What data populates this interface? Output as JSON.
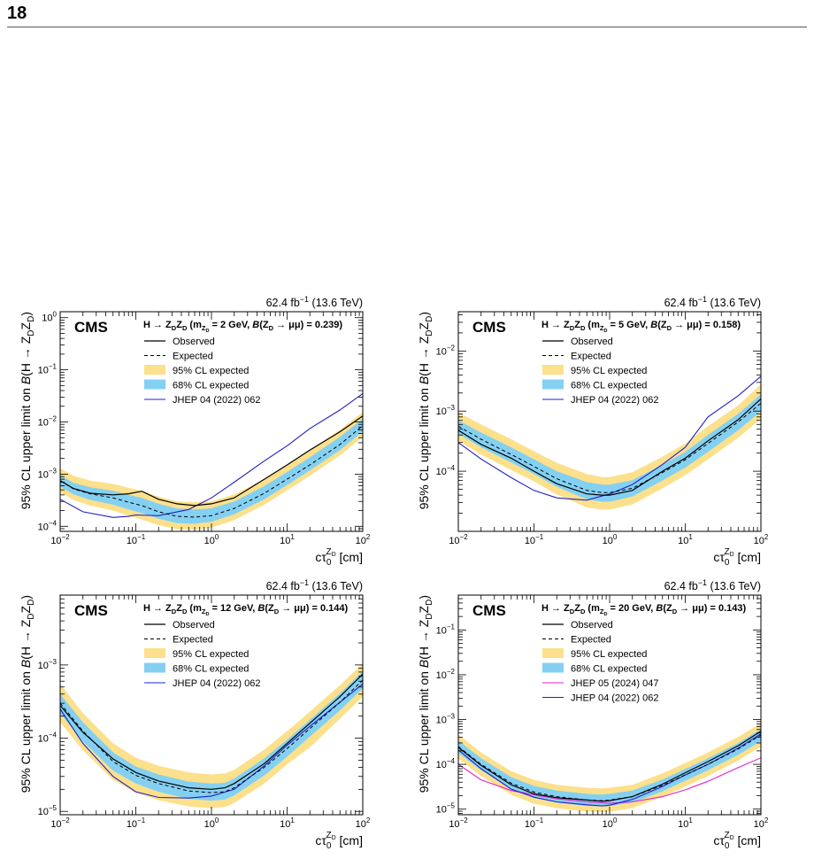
{
  "page": {
    "number": "18"
  },
  "colors": {
    "band95": "#fce08c",
    "band68": "#84d0f2",
    "observed": "#000000",
    "expected": "#000000",
    "jhep04": "#2020c8",
    "jhep05": "#e020d0"
  },
  "common": {
    "lumi": "62.4 fb",
    "lumi_sup": "−1",
    "energy": "(13.6 TeV)",
    "experiment": "CMS",
    "ylabel_pre": "95% CL upper limit on",
    "ylabel_B": "B",
    "ylabel_post": "(H → Z",
    "xlabel_c": "cτ",
    "xlabel_sup": "Z",
    "xlabel_supsub": "D",
    "xlabel_sub": "0",
    "xlabel_unit": "[cm]",
    "legend": {
      "observed": "Observed",
      "expected": "Expected",
      "band95": "95% CL expected",
      "band68": "68% CL expected",
      "jhep04": "JHEP 04 (2022) 062",
      "jhep05": "JHEP 05 (2024) 047"
    }
  },
  "chart_data": [
    {
      "type": "line",
      "title_main": "H → Z",
      "mass": "2 GeV",
      "br": "0.239",
      "xscale": "log",
      "yscale": "log",
      "xlim": [
        0.01,
        100
      ],
      "ylim": [
        8e-05,
        1.3
      ],
      "xticks": [
        0.01,
        0.1,
        1,
        10,
        100
      ],
      "yticks": [
        0.0001,
        0.001,
        0.01,
        0.1,
        1
      ],
      "legend_placement": "top",
      "x": [
        0.01,
        0.015,
        0.025,
        0.05,
        0.08,
        0.12,
        0.2,
        0.35,
        0.6,
        1,
        2,
        5,
        10,
        20,
        50,
        100
      ],
      "observed": [
        0.00075,
        0.00053,
        0.00043,
        0.0004,
        0.00042,
        0.00047,
        0.00033,
        0.00027,
        0.00025,
        0.00027,
        0.00035,
        0.0008,
        0.0015,
        0.0029,
        0.0065,
        0.013
      ],
      "expected": [
        0.00075,
        0.00052,
        0.00042,
        0.00035,
        0.00029,
        0.00025,
        0.00019,
        0.000155,
        0.00015,
        0.00016,
        0.00022,
        0.00043,
        0.0008,
        0.0015,
        0.0037,
        0.0085
      ],
      "band68_low": [
        0.00058,
        0.00041,
        0.00032,
        0.00026,
        0.00021,
        0.00018,
        0.00014,
        0.000115,
        0.000112,
        0.000122,
        0.00017,
        0.00033,
        0.00062,
        0.00118,
        0.0029,
        0.0066
      ],
      "band68_high": [
        0.00095,
        0.00068,
        0.00056,
        0.00048,
        0.0004,
        0.00035,
        0.00027,
        0.00022,
        0.00021,
        0.00022,
        0.0003,
        0.00059,
        0.0011,
        0.0021,
        0.0052,
        0.0115
      ],
      "band95_low": [
        0.00045,
        0.00032,
        0.00025,
        0.0002,
        0.00016,
        0.000135,
        0.000105,
        8.8e-05,
        8.7e-05,
        9.4e-05,
        0.000132,
        0.00026,
        0.00049,
        0.00093,
        0.0023,
        0.0052
      ],
      "band95_high": [
        0.0013,
        0.00093,
        0.00075,
        0.00065,
        0.00055,
        0.00048,
        0.00037,
        0.0003,
        0.00029,
        0.0003,
        0.00041,
        0.0008,
        0.0015,
        0.0029,
        0.0071,
        0.0155
      ],
      "ref_lines": [
        {
          "key": "jhep04",
          "x": [
            0.01,
            0.02,
            0.05,
            0.08,
            0.1,
            0.2,
            0.5,
            1,
            2,
            5,
            10,
            20,
            50,
            100
          ],
          "y": [
            0.00033,
            0.00019,
            0.000148,
            0.000155,
            0.000165,
            0.00016,
            0.00021,
            0.00035,
            0.0007,
            0.0018,
            0.0035,
            0.0075,
            0.017,
            0.035
          ]
        }
      ]
    },
    {
      "type": "line",
      "title_main": "H → Z",
      "mass": "5 GeV",
      "br": "0.158",
      "xscale": "log",
      "yscale": "log",
      "xlim": [
        0.01,
        100
      ],
      "ylim": [
        1e-05,
        0.045
      ],
      "xticks": [
        0.01,
        0.1,
        1,
        10,
        100
      ],
      "yticks": [
        0.0001,
        0.001,
        0.01
      ],
      "legend_placement": "top",
      "x": [
        0.01,
        0.02,
        0.05,
        0.1,
        0.2,
        0.5,
        0.8,
        1,
        2,
        5,
        10,
        20,
        50,
        100
      ],
      "observed": [
        0.00048,
        0.00028,
        0.000165,
        0.0001,
        6.2e-05,
        4.2e-05,
        4e-05,
        4e-05,
        4.8e-05,
        0.0001,
        0.000165,
        0.00032,
        0.00072,
        0.0016
      ],
      "expected": [
        0.00056,
        0.00034,
        0.00019,
        0.00012,
        7.5e-05,
        4.8e-05,
        4.4e-05,
        4.4e-05,
        5.2e-05,
        9.5e-05,
        0.000155,
        0.00029,
        0.00066,
        0.00135
      ],
      "band68_low": [
        0.00042,
        0.00025,
        0.00014,
        9e-05,
        5.5e-05,
        3.4e-05,
        3.1e-05,
        3.1e-05,
        3.8e-05,
        7e-05,
        0.000115,
        0.00021,
        0.00048,
        0.001
      ],
      "band68_high": [
        0.0007,
        0.00044,
        0.00025,
        0.000158,
        0.0001,
        6.6e-05,
        6e-05,
        6e-05,
        7.1e-05,
        0.000128,
        0.00021,
        0.0004,
        0.0009,
        0.0019
      ],
      "band95_low": [
        0.00032,
        0.00019,
        0.000105,
        6.8e-05,
        4.1e-05,
        2.5e-05,
        2.3e-05,
        2.3e-05,
        2.8e-05,
        5.2e-05,
        8.6e-05,
        0.000158,
        0.00036,
        0.00075
      ],
      "band95_high": [
        0.00095,
        0.0006,
        0.00034,
        0.000215,
        0.000138,
        9e-05,
        8e-05,
        8e-05,
        9.6e-05,
        0.000175,
        0.00029,
        0.00056,
        0.00125,
        0.0028
      ],
      "ref_lines": [
        {
          "key": "jhep04",
          "x": [
            0.01,
            0.02,
            0.05,
            0.1,
            0.2,
            0.5,
            1,
            2,
            5,
            10,
            20,
            50,
            100
          ],
          "y": [
            0.0003,
            0.00016,
            7.8e-05,
            4.8e-05,
            3.6e-05,
            3.3e-05,
            4.2e-05,
            6e-05,
            0.00013,
            0.00025,
            0.0008,
            0.0018,
            0.0038
          ]
        }
      ]
    },
    {
      "type": "line",
      "title_main": "H → Z",
      "mass": "12 GeV",
      "br": "0.144",
      "xscale": "log",
      "yscale": "log",
      "xlim": [
        0.01,
        100
      ],
      "ylim": [
        9e-06,
        0.009
      ],
      "xticks": [
        0.01,
        0.1,
        1,
        10,
        100
      ],
      "yticks": [
        1e-05,
        0.0001,
        0.001
      ],
      "legend_placement": "top",
      "x": [
        0.01,
        0.02,
        0.05,
        0.1,
        0.2,
        0.5,
        1,
        1.5,
        2,
        5,
        10,
        20,
        50,
        100
      ],
      "observed": [
        0.00028,
        0.00012,
        5.2e-05,
        3.4e-05,
        2.6e-05,
        2.1e-05,
        2e-05,
        2.1e-05,
        2.4e-05,
        4.5e-05,
        8.5e-05,
        0.00016,
        0.00037,
        0.00075
      ],
      "expected": [
        0.0003,
        0.000125,
        4.8e-05,
        3.1e-05,
        2.4e-05,
        1.9e-05,
        1.8e-05,
        1.85e-05,
        2.1e-05,
        4e-05,
        7.2e-05,
        0.000135,
        0.00031,
        0.00062
      ],
      "band68_low": [
        0.00022,
        9e-05,
        3.6e-05,
        2.4e-05,
        1.85e-05,
        1.48e-05,
        1.4e-05,
        1.45e-05,
        1.65e-05,
        3.1e-05,
        5.6e-05,
        0.000105,
        0.00024,
        0.00048
      ],
      "band68_high": [
        0.0004,
        0.000165,
        6.4e-05,
        4.1e-05,
        3.2e-05,
        2.55e-05,
        2.4e-05,
        2.45e-05,
        2.8e-05,
        5.3e-05,
        9.5e-05,
        0.000178,
        0.00041,
        0.00082
      ],
      "band95_low": [
        0.000165,
        6.8e-05,
        2.7e-05,
        1.8e-05,
        1.42e-05,
        1.17e-05,
        1.1e-05,
        1.15e-05,
        1.3e-05,
        2.4e-05,
        4.4e-05,
        7.5e-05,
        0.000185,
        0.00037
      ],
      "band95_high": [
        0.00055,
        0.00022,
        8.5e-05,
        5.4e-05,
        4.2e-05,
        3.4e-05,
        3.2e-05,
        3.3e-05,
        3.7e-05,
        7e-05,
        0.000125,
        0.00023,
        0.00053,
        0.00105
      ],
      "ref_lines": [
        {
          "key": "jhep04",
          "x": [
            0.01,
            0.02,
            0.05,
            0.1,
            0.2,
            0.5,
            1,
            2,
            5,
            10,
            20,
            50,
            100
          ],
          "y": [
            0.00025,
            8.5e-05,
            3e-05,
            1.85e-05,
            1.55e-05,
            1.52e-05,
            1.62e-05,
            2e-05,
            4.2e-05,
            8e-05,
            0.000145,
            0.00031,
            0.00055
          ]
        }
      ]
    },
    {
      "type": "line",
      "title_main": "H → Z",
      "mass": "20 GeV",
      "br": "0.143",
      "xscale": "log",
      "yscale": "log",
      "xlim": [
        0.01,
        100
      ],
      "ylim": [
        7.5e-06,
        0.6
      ],
      "xticks": [
        0.01,
        0.1,
        1,
        10,
        100
      ],
      "yticks": [
        1e-05,
        0.0001,
        0.001,
        0.01,
        0.1
      ],
      "legend_placement": "top",
      "x": [
        0.01,
        0.02,
        0.05,
        0.1,
        0.2,
        0.5,
        0.8,
        1,
        2,
        5,
        10,
        20,
        50,
        100
      ],
      "observed": [
        0.00024,
        9.5e-05,
        3.5e-05,
        2.2e-05,
        1.8e-05,
        1.6e-05,
        1.5e-05,
        1.55e-05,
        1.9e-05,
        3.6e-05,
        6.5e-05,
        0.000115,
        0.00026,
        0.00055
      ],
      "expected": [
        0.00025,
        0.0001,
        3.8e-05,
        2.4e-05,
        1.9e-05,
        1.6e-05,
        1.55e-05,
        1.6e-05,
        1.9e-05,
        3.4e-05,
        5.8e-05,
        0.0001,
        0.00022,
        0.00045
      ],
      "band68_low": [
        0.00018,
        7.4e-05,
        2.8e-05,
        1.78e-05,
        1.4e-05,
        1.18e-05,
        1.14e-05,
        1.18e-05,
        1.4e-05,
        2.5e-05,
        4.3e-05,
        7.4e-05,
        0.000163,
        0.00033
      ],
      "band68_high": [
        0.00034,
        0.000136,
        5.2e-05,
        3.3e-05,
        2.6e-05,
        2.2e-05,
        2.1e-05,
        2.2e-05,
        2.6e-05,
        4.6e-05,
        7.9e-05,
        0.000136,
        0.0003,
        0.00061
      ],
      "band95_low": [
        0.000135,
        5.5e-05,
        2.1e-05,
        1.32e-05,
        1.05e-05,
        8.8e-06,
        8.5e-06,
        8.8e-06,
        1.05e-05,
        1.9e-05,
        3.2e-05,
        5.5e-05,
        0.000122,
        0.00025
      ],
      "band95_high": [
        0.00046,
        0.000185,
        7e-05,
        4.5e-05,
        3.5e-05,
        3e-05,
        2.9e-05,
        3e-05,
        3.5e-05,
        6.3e-05,
        0.000107,
        0.000185,
        0.00041,
        0.00083
      ],
      "ref_lines": [
        {
          "key": "jhep05",
          "x": [
            0.01,
            0.02,
            0.05,
            0.1,
            0.2,
            0.5,
            1,
            2,
            5,
            10,
            20,
            50,
            100
          ],
          "y": [
            0.0001,
            4.5e-05,
            2.6e-05,
            2.1e-05,
            1.7e-05,
            1.45e-05,
            1.35e-05,
            1.45e-05,
            1.9e-05,
            2.7e-05,
            4.2e-05,
            8.5e-05,
            0.00014
          ]
        },
        {
          "key": "jhep04",
          "x": [
            0.01,
            0.02,
            0.05,
            0.1,
            0.2,
            0.5,
            0.8,
            1,
            2,
            5,
            10,
            20,
            50,
            100
          ],
          "y": [
            0.00021,
            8e-05,
            2.8e-05,
            1.85e-05,
            1.45e-05,
            1.25e-05,
            1.18e-05,
            1.22e-05,
            1.65e-05,
            3.2e-05,
            5.8e-05,
            0.0001,
            0.00023,
            0.00048
          ]
        }
      ]
    }
  ]
}
